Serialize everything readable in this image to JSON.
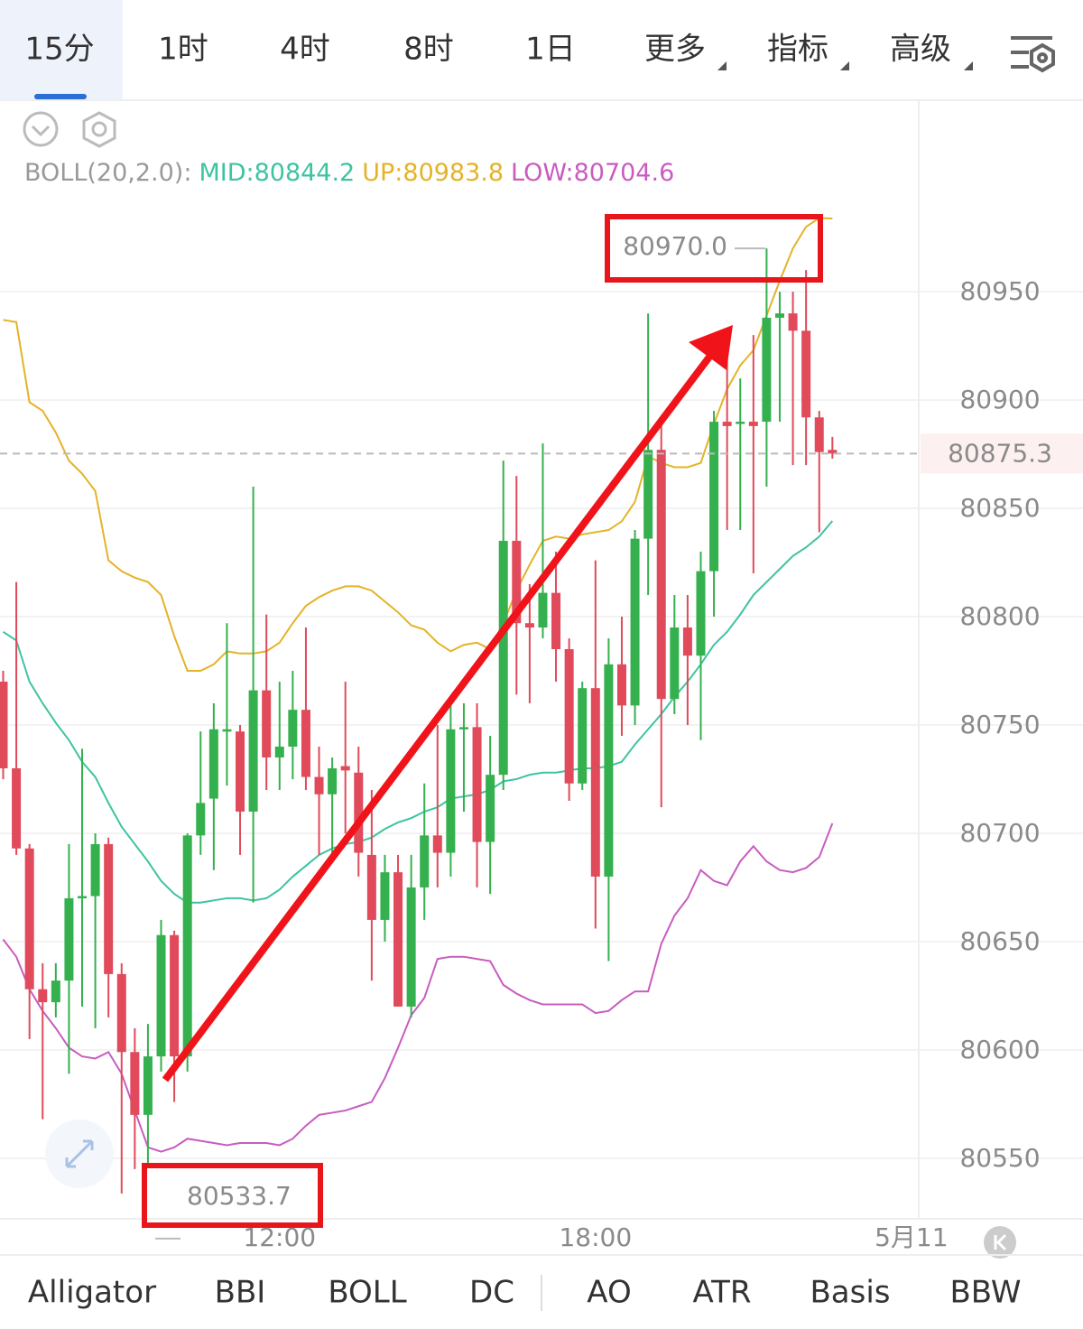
{
  "top_tabs": {
    "items": [
      "15分",
      "1时",
      "4时",
      "8时",
      "1日",
      "更多",
      "指标",
      "高级"
    ],
    "active": 0
  },
  "chart_data": {
    "type": "candlestick",
    "x": [
      6.75,
      7,
      7.25,
      7.5,
      7.75,
      8,
      8.25,
      8.5,
      8.75,
      9,
      9.25,
      9.5,
      9.75,
      10,
      10.25,
      10.5,
      10.75,
      11,
      11.25,
      11.5,
      11.75,
      12,
      12.25,
      12.5,
      12.75,
      13,
      13.25,
      13.5,
      13.75,
      14,
      14.25,
      14.5,
      14.75,
      15,
      15.25,
      15.5,
      15.75,
      16,
      16.25,
      16.5,
      16.75,
      17,
      17.25,
      17.5,
      17.75,
      18,
      18.25,
      18.5,
      18.75,
      19,
      19.25,
      19.5,
      19.75,
      20,
      20.25,
      20.5,
      20.75,
      21,
      21.25,
      21.5,
      21.75,
      22,
      22.25,
      22.5
    ],
    "open": [
      80770,
      80730,
      80693,
      80628,
      80622,
      80632,
      80670,
      80671,
      80695,
      80635,
      80599,
      80570,
      80597,
      80653,
      80597,
      80699,
      80716,
      80748,
      80747,
      80710,
      80766,
      80735,
      80740,
      80757,
      80726,
      80718,
      80731,
      80728,
      80690,
      80660,
      80682,
      80620,
      80675,
      80699,
      80691,
      80749,
      80749,
      80696,
      80727,
      80835,
      80797,
      80795,
      80811,
      80785,
      80723,
      80767,
      80680,
      80778,
      80759,
      80836,
      80877,
      80762,
      80795,
      80782,
      80821,
      80890,
      80889,
      80890,
      80890,
      80938,
      80940,
      80932,
      80892,
      80877
    ],
    "high": [
      80775,
      80816,
      80695,
      80640,
      80640,
      80695,
      80739,
      80700,
      80698,
      80640,
      80610,
      80612,
      80660,
      80655,
      80700,
      80747,
      80760,
      80797,
      80750,
      80860,
      80801,
      80770,
      80775,
      80795,
      80740,
      80735,
      80770,
      80740,
      80720,
      80690,
      80690,
      80690,
      80723,
      80750,
      80760,
      80760,
      80760,
      80745,
      80872,
      80865,
      80815,
      80880,
      80830,
      80790,
      80770,
      80826,
      80790,
      80800,
      80840,
      80940,
      80890,
      80810,
      80810,
      80830,
      80895,
      80920,
      80910,
      80930,
      80970,
      80950,
      80950,
      80960,
      80895,
      80883
    ],
    "low": [
      80725,
      80690,
      80605,
      80568,
      80615,
      80589,
      80620,
      80610,
      80615,
      80533.7,
      80545,
      80547,
      80590,
      80576,
      80590,
      80690,
      80683,
      80722,
      80690,
      80668,
      80720,
      80720,
      80725,
      80720,
      80690,
      80690,
      80700,
      80680,
      80632,
      80650,
      80620,
      80615,
      80660,
      80675,
      80680,
      80710,
      80675,
      80672,
      80720,
      80764,
      80760,
      80790,
      80770,
      80715,
      80720,
      80656,
      80641,
      80745,
      80750,
      80810,
      80712,
      80755,
      80750,
      80743,
      80800,
      80840,
      80840,
      80820,
      80860,
      80890,
      80870,
      80870,
      80839,
      80873
    ],
    "close": [
      80730,
      80693,
      80628,
      80622,
      80632,
      80670,
      80671,
      80695,
      80635,
      80599,
      80570,
      80597,
      80653,
      80597,
      80699,
      80714,
      80748,
      80748,
      80710,
      80766,
      80735,
      80740,
      80757,
      80726,
      80718,
      80730,
      80729,
      80691,
      80660,
      80682,
      80620,
      80675,
      80699,
      80691,
      80748,
      80749,
      80696,
      80727,
      80835,
      80797,
      80795,
      80811,
      80785,
      80723,
      80767,
      80680,
      80778,
      80759,
      80836,
      80877,
      80762,
      80795,
      80782,
      80821,
      80890,
      80888,
      80890,
      80888,
      80938,
      80940,
      80932,
      80892,
      80876,
      80875.3
    ],
    "up_color": "#35b04e",
    "down_color": "#e04a5a",
    "indicator": {
      "label": "BOLL(20,2.0):",
      "series": [
        {
          "name": "MID:80844.2",
          "color": "#3ec3a2",
          "values": [
            80793,
            80789,
            80770,
            80760,
            80751,
            80743,
            80733,
            80726,
            80714,
            80703,
            80695,
            80687,
            80678,
            80672,
            80668,
            80668,
            80669,
            80670,
            80670,
            80669,
            80670,
            80674,
            80680,
            80685,
            80690,
            80693,
            80695,
            80696,
            80698,
            80702,
            80705,
            80707,
            80710,
            80712,
            80716,
            80717,
            80718,
            80720,
            80724,
            80725,
            80727,
            80728,
            80728,
            80729,
            80730,
            80730,
            80731,
            80733,
            80741,
            80748,
            80755,
            80763,
            80770,
            80778,
            80787,
            80793,
            80801,
            80810,
            80816,
            80822,
            80828,
            80832,
            80837,
            80844.2
          ]
        },
        {
          "name": "UP:80983.8",
          "color": "#e4b327",
          "values": [
            80937,
            80936,
            80899,
            80895,
            80885,
            80872,
            80866,
            80858,
            80826,
            80821,
            80818,
            80816,
            80810,
            80791,
            80775,
            80775,
            80778,
            80784,
            80783,
            80783,
            80784,
            80788,
            80797,
            80805,
            80809,
            80812,
            80814,
            80814,
            80812,
            80807,
            80802,
            80796,
            80794,
            80788,
            80784,
            80787,
            80788,
            80785,
            80797,
            80812,
            80824,
            80835,
            80837,
            80836,
            80838,
            80839,
            80840,
            80844,
            80853,
            80874,
            80871,
            80869,
            80869,
            80871,
            80889,
            80905,
            80916,
            80923,
            80939,
            80955,
            80970,
            80980,
            80984,
            80983.8
          ]
        },
        {
          "name": "LOW:80704.6",
          "color": "#c85cbf",
          "values": [
            80651,
            80643,
            80628,
            80618,
            80610,
            80601,
            80597,
            80596,
            80599,
            80589,
            80572,
            80555,
            80553,
            80555,
            80559,
            80558,
            80557,
            80556,
            80557,
            80557,
            80557,
            80556,
            80559,
            80565,
            80570,
            80571,
            80572,
            80574,
            80576,
            80587,
            80601,
            80616,
            80624,
            80642,
            80643,
            80643,
            80642,
            80641,
            80630,
            80626,
            80623,
            80621,
            80621,
            80621,
            80621,
            80617,
            80618,
            80623,
            80627,
            80627,
            80649,
            80662,
            80670,
            80683,
            80678,
            80676,
            80687,
            80694,
            80687,
            80683,
            80682,
            80684,
            80689,
            80704.6
          ]
        }
      ]
    },
    "xlim": [
      6.69,
      24.14
    ],
    "xticks": [
      {
        "value": 12,
        "label": "12:00"
      },
      {
        "value": 18,
        "label": "18:00"
      },
      {
        "value": 24,
        "label": "5月11"
      }
    ],
    "ylim": [
      80522,
      81038
    ],
    "yticks": [
      80550,
      80600,
      80650,
      80700,
      80750,
      80800,
      80850,
      80900,
      80950
    ],
    "grid": true,
    "last_price": {
      "value": 80875.3,
      "label": "80875.3"
    },
    "high_marker": {
      "value": 80970,
      "label": "80970.0"
    },
    "low_marker": {
      "value": 80533.7,
      "label": "80533.7"
    }
  },
  "bottom_tabs": {
    "items": [
      "Alligator",
      "BBI",
      "BOLL",
      "DC",
      "AO",
      "ATR",
      "Basis",
      "BBW"
    ],
    "active": 2
  }
}
